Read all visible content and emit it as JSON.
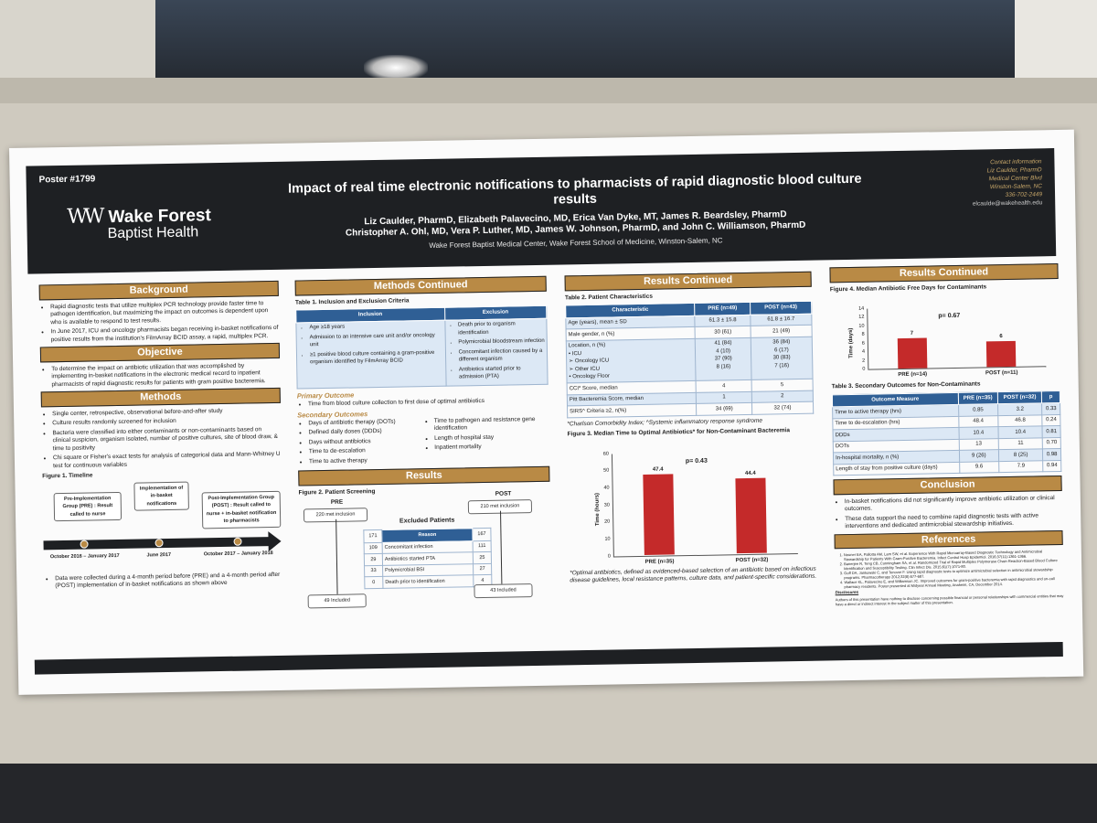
{
  "poster_no": "Poster #1799",
  "logo": {
    "line1": "Wake Forest",
    "line2": "Baptist Health"
  },
  "title": "Impact of real time electronic notifications to pharmacists of rapid diagnostic blood culture results",
  "authors1": "Liz Caulder, PharmD, Elizabeth Palavecino, MD, Erica Van Dyke, MT, James R. Beardsley, PharmD",
  "authors2": "Christopher A. Ohl, MD, Vera P. Luther, MD, James W. Johnson, PharmD, and John C. Williamson, PharmD",
  "affiliation": "Wake Forest Baptist Medical Center, Wake Forest School of Medicine, Winston-Salem, NC",
  "contact": {
    "l1": "Contact information",
    "l2": "Liz Caulder, PharmD",
    "l3": "Medical Center Blvd",
    "l4": "Winston-Salem, NC",
    "l5": "336-702-2449",
    "email": "elcaulde@wakehealth.edu"
  },
  "background": {
    "heading": "Background",
    "b1": "Rapid diagnostic tests that utilize multiplex PCR technology provide faster time to pathogen identification, but maximizing the impact on outcomes is dependent upon who is available to respond to test results.",
    "b2": "In June 2017, ICU and oncology pharmacists began receiving in-basket notifications of positive results from the institution's FilmArray BCID assay, a rapid, multiplex PCR."
  },
  "objective": {
    "heading": "Objective",
    "b1": "To determine the impact on antibiotic utilization that was accomplished by implementing in-basket notifications in the electronic medical record to inpatient pharmacists of rapid diagnostic results for patients with gram positive bacteremia."
  },
  "methods": {
    "heading": "Methods",
    "b1": "Single center, retrospective, observational before-and-after study",
    "b2": "Culture results randomly screened for inclusion",
    "b3": "Bacteria were classified into either contaminants or non-contaminants based on clinical suspicion, organism isolated, number of positive cultures, site of blood draw, & time to positivity",
    "b4": "Chi square or Fisher's exact tests for analysis of categorical data and Mann-Whitney U test for continuous variables"
  },
  "timeline": {
    "caption": "Figure 1. Timeline",
    "pre": "Pre-Implementation Group (PRE) : Result called to nurse",
    "impl": "Implementation of in-basket notifications",
    "post": "Post-Implementation Group (POST) : Result called to nurse + in-basket notification to pharmacists",
    "d1": "October 2016 – January 2017",
    "d2": "June 2017",
    "d3": "October 2017 – January 2018",
    "note": "Data were collected during a 4-month period before (PRE) and a 4-month period after (POST) implementation of in-basket notifications as shown above"
  },
  "methods_cont": {
    "heading": "Methods Continued",
    "caption": "Table 1. Inclusion and Exclusion Criteria",
    "inc_h": "Inclusion",
    "exc_h": "Exclusion",
    "inc": [
      "Age ≥18 years",
      "Admission to an intensive care unit and/or oncology unit",
      "≥1 positive blood culture containing a gram-positive organism identified by FilmArray BCID"
    ],
    "exc": [
      "Death prior to organism identification",
      "Polymicrobial bloodstream infection",
      "Concomitant infection caused by a different organism",
      "Antibiotics started prior to admission (PTA)"
    ],
    "primary_h": "Primary Outcome",
    "primary": "Time from blood culture collection to first dose of optimal antibiotics",
    "secondary_h": "Secondary Outcomes",
    "sec": [
      "Days of antibiotic therapy (DOTs)",
      "Defined daily doses (DDDs)",
      "Days without antibiotics",
      "Time to de-escalation",
      "Time to active therapy",
      "Time to pathogen and resistance gene identification",
      "Length of hospital stay",
      "Inpatient mortality"
    ]
  },
  "results": {
    "heading": "Results",
    "caption": "Figure 2. Patient Screening",
    "pre": "PRE",
    "post": "POST",
    "pre_met": "220 met inclusion",
    "post_met": "210 met inclusion",
    "excl_h": "Excluded Patients",
    "reason_h": "Reason",
    "pre_tot": "171",
    "post_tot": "167",
    "rows": [
      {
        "a": "109",
        "r": "Concomitant infection",
        "b": "111"
      },
      {
        "a": "29",
        "r": "Antibiotics started PTA",
        "b": "25"
      },
      {
        "a": "33",
        "r": "Polymicrobial BSI",
        "b": "27"
      },
      {
        "a": "0",
        "r": "Death prior to identification",
        "b": "4"
      }
    ],
    "pre_inc": "49 Included",
    "post_inc": "43 Included"
  },
  "results_cont": {
    "heading": "Results Continued",
    "caption": "Table 2. Patient Characteristics",
    "h": [
      "Characteristic",
      "PRE (n=49)",
      "POST (n=43)"
    ],
    "rows": [
      [
        "Age (years), mean ± SD",
        "61.3 ± 15.8",
        "61.8 ± 16.7"
      ],
      [
        "Male gender, n (%)",
        "30 (61)",
        "21 (49)"
      ],
      [
        "Location, n (%)\n• ICU\n   ➢ Oncology ICU\n   ➢ Other ICU\n• Oncology Floor",
        "41 (84)\n4 (10)\n37 (90)\n8 (16)",
        "36 (84)\n6 (17)\n30 (83)\n7 (16)"
      ],
      [
        "CCI* Score, median",
        "4",
        "5"
      ],
      [
        "Pitt Bacteremia Score, median",
        "1",
        "2"
      ],
      [
        "SIRS^ Criteria ≥2, n(%)",
        "34 (69)",
        "32 (74)"
      ]
    ],
    "footnote": "*Charlson Comorbidity Index; ^Systemic inflammatory response syndrome",
    "fig3": "Figure 3. Median Time to Optimal Antibiotics* for Non-Contaminant Bacteremia",
    "fig3_foot": "*Optimal antibiotics, defined as evidenced-based selection of an antibiotic based on infectious disease guidelines, local resistance patterns, culture data, and patient-specific considerations."
  },
  "results_cont2": {
    "heading": "Results Continued",
    "fig4": "Figure 4. Median Antibiotic Free Days for Contaminants",
    "caption3": "Table 3. Secondary Outcomes for Non-Contaminants",
    "h": [
      "Outcome Measure",
      "PRE (n=35)",
      "POST (n=32)",
      "p"
    ],
    "rows": [
      [
        "Time to active therapy (hrs)",
        "0.85",
        "3.2",
        "0.33"
      ],
      [
        "Time to de-escalation (hrs)",
        "48.4",
        "46.8",
        "0.24"
      ],
      [
        "DDDs",
        "10.4",
        "10.4",
        "0.81"
      ],
      [
        "DOTs",
        "13",
        "11",
        "0.70"
      ],
      [
        "In-hospital mortality, n (%)",
        "9 (26)",
        "8 (25)",
        "0.98"
      ],
      [
        "Length of stay from positive culture (days)",
        "9.6",
        "7.9",
        "0.94"
      ]
    ]
  },
  "conclusion": {
    "heading": "Conclusion",
    "b1": "In-basket notifications did not significantly improve antibiotic utilization or clinical outcomes.",
    "b2": "These data support the need to combine rapid diagnostic tests with active interventions and dedicated antimicrobial stewardship initiatives."
  },
  "references": {
    "heading": "References",
    "r": [
      "Neuner EA, Pallotta AM, Lam SW, et al. Experience With Rapid Microarray-Based Diagnostic Technology and Antimicrobial Stewardship for Patients With Gram-Positive Bacteremia. Infect Control Hosp Epidemiol. 2016;37(11):1361-1366.",
      "Banerjee R, Teng CB, Cunningham SA, et al. Randomized Trial of Rapid Multiplex Polymerase Chain Reaction-Based Blood Culture Identification and Susceptibility Testing. Clin Infect Dis. 2015;61(7):1071-80.",
      "Goff DA, Jankowski C, and Tenover F. Using rapid diagnostic tests to optimize antimicrobial selection in antimicrobial stewardship programs. Pharmacotherapy 2012;32(8):677-687.",
      "Wallace KL, Palavecino E, and Williamson JC. Improved outcomes for gram-positive bacteremia with rapid diagnostics and on-call pharmacy residents. Poster presented at Midyear Annual Meeting, Anaheim, CA, December 2014."
    ],
    "disc_h": "Disclosures",
    "disc": "Authors of this presentation have nothing to disclose concerning possible financial or personal relationships with commercial entities that may have a direct or indirect interest in the subject matter of this presentation."
  },
  "chart_data": [
    {
      "type": "bar",
      "title": "Figure 3. Median Time to Optimal Antibiotics* for Non-Contaminant Bacteremia",
      "categories": [
        "PRE (n=35)",
        "POST (n=32)"
      ],
      "values": [
        47.4,
        44.4
      ],
      "ylabel": "Time (hours)",
      "ylim": [
        0,
        60
      ],
      "yticks": [
        0,
        10,
        20,
        30,
        40,
        50,
        60
      ],
      "annotation": "p= 0.43",
      "color": "#c42a2a"
    },
    {
      "type": "bar",
      "title": "Figure 4. Median Antibiotic Free Days for Contaminants",
      "categories": [
        "PRE (n=14)",
        "POST (n=11)"
      ],
      "values": [
        7,
        6
      ],
      "ylabel": "Time (days)",
      "ylim": [
        0,
        14
      ],
      "yticks": [
        0,
        2,
        4,
        6,
        8,
        10,
        12,
        14
      ],
      "annotation": "p= 0.67",
      "color": "#c42a2a"
    }
  ]
}
